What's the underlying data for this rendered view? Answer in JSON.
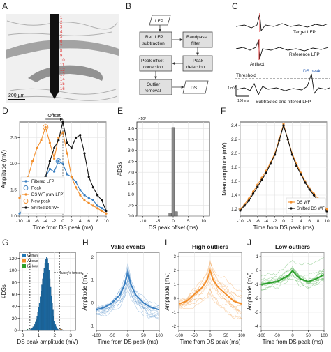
{
  "panel_letters": [
    "A",
    "B",
    "C",
    "D",
    "E",
    "F",
    "G",
    "H",
    "I",
    "J"
  ],
  "panel_a": {
    "scale_bar": "200 µm",
    "channels": [
      "1",
      "2",
      "3",
      "4",
      "5",
      "6",
      "7",
      "8",
      "9",
      "10",
      "11",
      "12",
      "13",
      "14",
      "15",
      "16"
    ]
  },
  "panel_b": {
    "boxes": {
      "lfp": "LFP",
      "ref_sub_1": "Ref. LFP",
      "ref_sub_2": "subtraction",
      "bandpass_1": "Bandpass",
      "bandpass_2": "filter",
      "peak_offset_1": "Peak offset",
      "peak_offset_2": "correction",
      "peak_detect_1": "Peak",
      "peak_detect_2": "detection",
      "outlier_1": "Outlier",
      "outlier_2": "removal",
      "ds": "DS"
    }
  },
  "panel_c": {
    "target_label": "Target LFP",
    "reference_label": "Reference LFP",
    "artifact_label": "Artifact",
    "ds_peak_label": "DS peak",
    "threshold_label": "Threshold",
    "subtracted_label": "Subtracted and filtered LFP",
    "scale_v": "1 mV",
    "scale_t": "100 ms"
  },
  "chart_data": [
    {
      "panel": "D",
      "type": "line",
      "xlabel": "Time from DS peak (ms)",
      "ylabel": "Amplitude (mV)",
      "xlim": [
        -10,
        10
      ],
      "ylim": [
        1.0,
        2.8
      ],
      "xticks": [
        -10,
        -8,
        -6,
        -4,
        -2,
        0,
        2,
        4,
        6,
        8,
        10
      ],
      "yticks": [
        1.0,
        1.5,
        2.0,
        2.5
      ],
      "annotation": "Offset",
      "legend_position": "bottom-left",
      "series": [
        {
          "name": "Filtered LFP",
          "color": "#3a7fc1",
          "x": [
            -10,
            -9,
            -8,
            -7,
            -6,
            -5,
            -4,
            -3,
            -2,
            -1,
            0,
            1,
            2,
            3,
            4,
            5,
            6,
            7,
            8,
            9,
            10
          ],
          "y": [
            1.05,
            1.15,
            1.3,
            1.45,
            1.6,
            1.6,
            1.75,
            1.9,
            1.85,
            2.05,
            2.0,
            1.8,
            1.75,
            1.65,
            1.5,
            1.4,
            1.35,
            1.3,
            1.2,
            1.15,
            1.1
          ]
        },
        {
          "name": "DS WF (raw LFP)",
          "color": "#f28e2b",
          "x": [
            -10,
            -9,
            -8,
            -7,
            -6,
            -5,
            -4,
            -3,
            -2,
            -1,
            0,
            1,
            2,
            3,
            4,
            5,
            6,
            7,
            8,
            9,
            10
          ],
          "y": [
            1.35,
            1.5,
            1.75,
            2.05,
            2.3,
            2.45,
            2.7,
            2.4,
            2.1,
            2.5,
            2.6,
            2.2,
            1.75,
            1.55,
            1.4,
            1.3,
            1.25,
            1.2,
            1.15,
            1.1,
            1.05
          ]
        },
        {
          "name": "Shifted DS WF",
          "color": "#111111",
          "x": [
            -6,
            -5,
            -4,
            -3,
            -2,
            -1,
            0,
            1,
            2,
            3,
            4,
            5,
            6,
            7,
            8,
            9,
            10
          ],
          "y": [
            1.35,
            1.5,
            1.75,
            2.05,
            2.3,
            2.45,
            2.8,
            2.4,
            2.3,
            2.5,
            2.55,
            2.2,
            1.75,
            1.55,
            1.4,
            1.3,
            1.1
          ]
        }
      ],
      "markers": [
        {
          "name": "Peak",
          "color": "#3a7fc1",
          "x": -1,
          "y": 2.05
        },
        {
          "name": "New peak",
          "color": "#f28e2b",
          "x": -4,
          "y": 2.7
        }
      ]
    },
    {
      "panel": "E",
      "type": "bar",
      "xlabel": "DS peak offset (ms)",
      "ylabel": "#DSs",
      "y_multiplier": "×10³",
      "xlim": [
        -12,
        12
      ],
      "ylim": [
        0,
        4.3
      ],
      "xticks": [
        -10,
        -5,
        0,
        5,
        10
      ],
      "yticks": [
        0,
        0.5,
        1.0,
        1.5,
        2.0,
        2.5,
        3.0,
        3.5,
        4.0
      ],
      "x": [
        -1,
        0,
        1
      ],
      "values": [
        0.15,
        4.05,
        0.2
      ],
      "color": "#888888"
    },
    {
      "panel": "F",
      "type": "line",
      "xlabel": "Time from DS peak (ms)",
      "ylabel": "Mean amplitude (mV)",
      "xlim": [
        -10,
        10
      ],
      "ylim": [
        1.1,
        2.45
      ],
      "xticks": [
        -10,
        -8,
        -6,
        -4,
        -2,
        0,
        2,
        4,
        6,
        8,
        10
      ],
      "yticks": [
        1.2,
        1.4,
        1.6,
        1.8,
        2.0,
        2.2,
        2.4
      ],
      "legend_position": "bottom-right",
      "series": [
        {
          "name": "DS WF",
          "color": "#f28e2b",
          "x": [
            -10,
            -9,
            -8,
            -7,
            -6,
            -5,
            -4,
            -3,
            -2,
            -1,
            0,
            1,
            2,
            3,
            4,
            5,
            6,
            7,
            8,
            9,
            10
          ],
          "y": [
            1.2,
            1.27,
            1.35,
            1.45,
            1.55,
            1.65,
            1.75,
            1.87,
            2.0,
            2.2,
            2.42,
            2.2,
            2.0,
            1.85,
            1.72,
            1.6,
            1.5,
            1.42,
            1.35,
            1.27,
            1.2
          ]
        },
        {
          "name": "Shifted DS WF",
          "color": "#111111",
          "x": [
            -10,
            -9,
            -8,
            -7,
            -6,
            -5,
            -4,
            -3,
            -2,
            -1,
            0,
            1,
            2,
            3,
            4,
            5,
            6,
            7,
            8,
            9,
            10
          ],
          "y": [
            1.18,
            1.25,
            1.32,
            1.42,
            1.52,
            1.62,
            1.72,
            1.85,
            1.98,
            2.18,
            2.4,
            2.2,
            1.98,
            1.82,
            1.7,
            1.58,
            1.48,
            1.4,
            1.32,
            1.25,
            1.17
          ]
        }
      ]
    },
    {
      "panel": "G",
      "type": "bar",
      "xlabel": "DS peak amplitude (mV)",
      "ylabel": "#DSs",
      "xlim": [
        -0.2,
        3.3
      ],
      "ylim": [
        0,
        130
      ],
      "xticks": [
        0,
        1,
        2,
        3
      ],
      "yticks": [
        0,
        20,
        40,
        60,
        80,
        100,
        120
      ],
      "fence_label": "Tukey's fences",
      "fences": [
        0.45,
        2.3
      ],
      "bin_width": 0.05,
      "series": [
        {
          "name": "Within",
          "color": "#1f77b4",
          "x": [
            0.5,
            0.55,
            0.6,
            0.65,
            0.7,
            0.75,
            0.8,
            0.85,
            0.9,
            0.95,
            1.0,
            1.05,
            1.1,
            1.15,
            1.2,
            1.25,
            1.3,
            1.35,
            1.4,
            1.45,
            1.5,
            1.55,
            1.6,
            1.65,
            1.7,
            1.75,
            1.8,
            1.85,
            1.9,
            1.95,
            2.0,
            2.05,
            2.1,
            2.15,
            2.2,
            2.25
          ],
          "values": [
            2,
            3,
            4,
            6,
            8,
            10,
            14,
            18,
            24,
            30,
            38,
            46,
            56,
            66,
            76,
            86,
            96,
            104,
            112,
            118,
            122,
            120,
            112,
            100,
            86,
            72,
            58,
            46,
            34,
            24,
            16,
            10,
            6,
            4,
            2,
            1
          ]
        },
        {
          "name": "Above",
          "color": "#f28e2b",
          "x": [
            2.35,
            2.45,
            2.55
          ],
          "values": [
            3,
            2,
            1
          ]
        },
        {
          "name": "Below",
          "color": "#2ca02c",
          "x": [
            0.1,
            0.2,
            0.3,
            0.4
          ],
          "values": [
            1,
            1,
            2,
            3
          ]
        }
      ]
    },
    {
      "panel": "H",
      "type": "line",
      "title": "Valid events",
      "xlabel": "Time from DS peak (ms)",
      "ylabel": "Amplitude (mV)",
      "xlim": [
        -100,
        100
      ],
      "ylim": [
        -1.2,
        2.2
      ],
      "xticks": [
        -100,
        -50,
        0,
        50,
        100
      ],
      "yticks": [
        -1,
        0,
        1,
        2
      ],
      "color": "#3a7fc1",
      "mean_x": [
        -100,
        -75,
        -50,
        -25,
        -10,
        0,
        10,
        25,
        50,
        75,
        100
      ],
      "mean_y": [
        -0.3,
        -0.2,
        0.0,
        0.35,
        0.8,
        1.3,
        0.8,
        0.35,
        0.0,
        -0.2,
        -0.3
      ]
    },
    {
      "panel": "I",
      "type": "line",
      "title": "High outliers",
      "xlabel": "Time from DS peak (ms)",
      "ylabel": "Amplitude (mV)",
      "xlim": [
        -100,
        100
      ],
      "ylim": [
        -2.3,
        3.3
      ],
      "xticks": [
        -100,
        -50,
        0,
        50,
        100
      ],
      "yticks": [
        -2,
        -1,
        0,
        1,
        2,
        3
      ],
      "color": "#f28e2b",
      "mean_x": [
        -100,
        -75,
        -50,
        -25,
        -10,
        0,
        10,
        25,
        50,
        75,
        100
      ],
      "mean_y": [
        -0.4,
        -0.2,
        0.3,
        0.8,
        1.3,
        2.0,
        1.3,
        0.8,
        0.3,
        -0.2,
        -0.4
      ]
    },
    {
      "panel": "J",
      "type": "line",
      "title": "Low outliers",
      "xlabel": "Time from DS peak (ms)",
      "ylabel": "Amplitude (mV)",
      "xlim": [
        -100,
        100
      ],
      "ylim": [
        -4.3,
        1.3
      ],
      "xticks": [
        -100,
        -50,
        0,
        50,
        100
      ],
      "yticks": [
        -4,
        -3,
        -2,
        -1,
        0,
        1
      ],
      "color": "#2ca02c",
      "mean_x": [
        -100,
        -75,
        -50,
        -25,
        -10,
        0,
        10,
        25,
        50,
        75,
        100
      ],
      "mean_y": [
        -1.0,
        -0.9,
        -0.8,
        -0.5,
        -0.3,
        0.0,
        -0.3,
        -0.6,
        -0.8,
        -0.6,
        -0.3
      ]
    }
  ]
}
